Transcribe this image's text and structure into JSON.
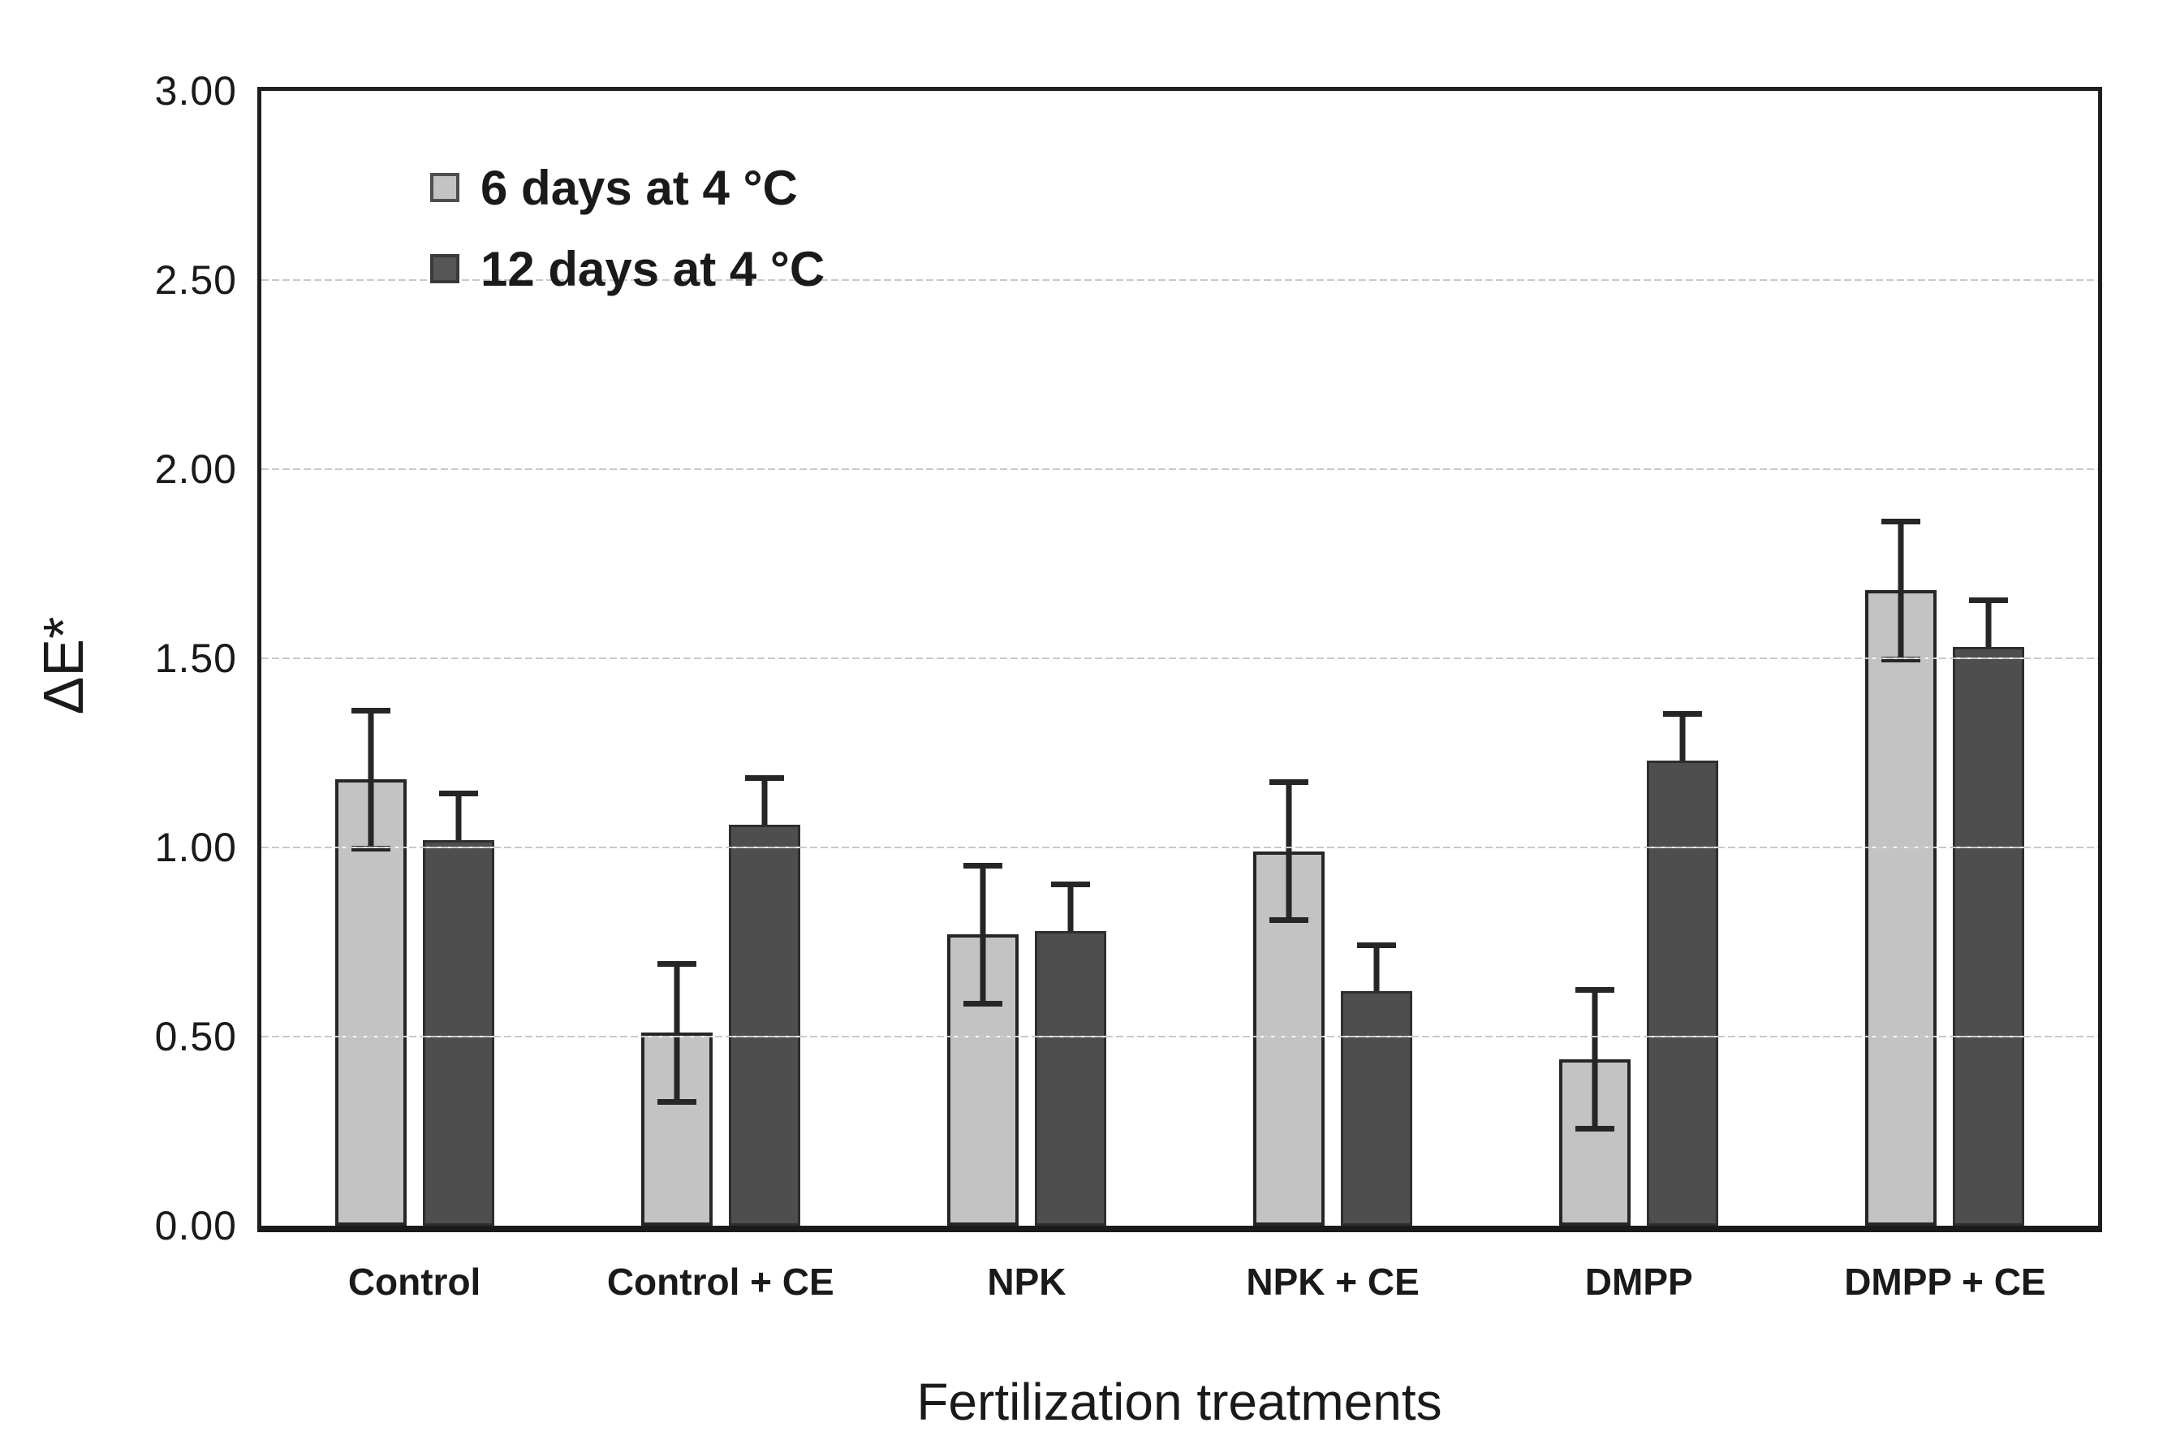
{
  "chart_data": {
    "type": "bar",
    "title": "",
    "xlabel": "Fertilization treatments",
    "ylabel": "ΔE*",
    "categories": [
      "Control",
      "Control + CE",
      "NPK",
      "NPK + CE",
      "DMPP",
      "DMPP + CE"
    ],
    "series": [
      {
        "name": "6 days at 4 °C",
        "color": "#c3c3c3",
        "values": [
          1.18,
          0.51,
          0.77,
          0.99,
          0.44,
          1.68
        ],
        "error": [
          0.19,
          0.19,
          0.19,
          0.19,
          0.19,
          0.19
        ],
        "error_visible": "both"
      },
      {
        "name": "12 days at 4 °C",
        "color": "#4e4e4e",
        "values": [
          1.02,
          1.06,
          0.78,
          0.62,
          1.23,
          1.53
        ],
        "error": [
          0.13,
          0.13,
          0.13,
          0.13,
          0.13,
          0.13
        ],
        "error_visible": "upper"
      }
    ],
    "ylim": [
      0,
      3
    ],
    "ytick_step": 0.5,
    "ytick_labels": [
      "0.00",
      "0.50",
      "1.00",
      "1.50",
      "2.00",
      "2.50",
      "3.00"
    ],
    "grid": true,
    "gridline_values": [
      0.5,
      1.0,
      1.5,
      2.0,
      2.5
    ],
    "legend_position": "top-left-inside",
    "accent_colors": {
      "error_bar": "#262626",
      "gridline": "#c9c9c9",
      "axis_border": "#1f1f1f"
    }
  }
}
